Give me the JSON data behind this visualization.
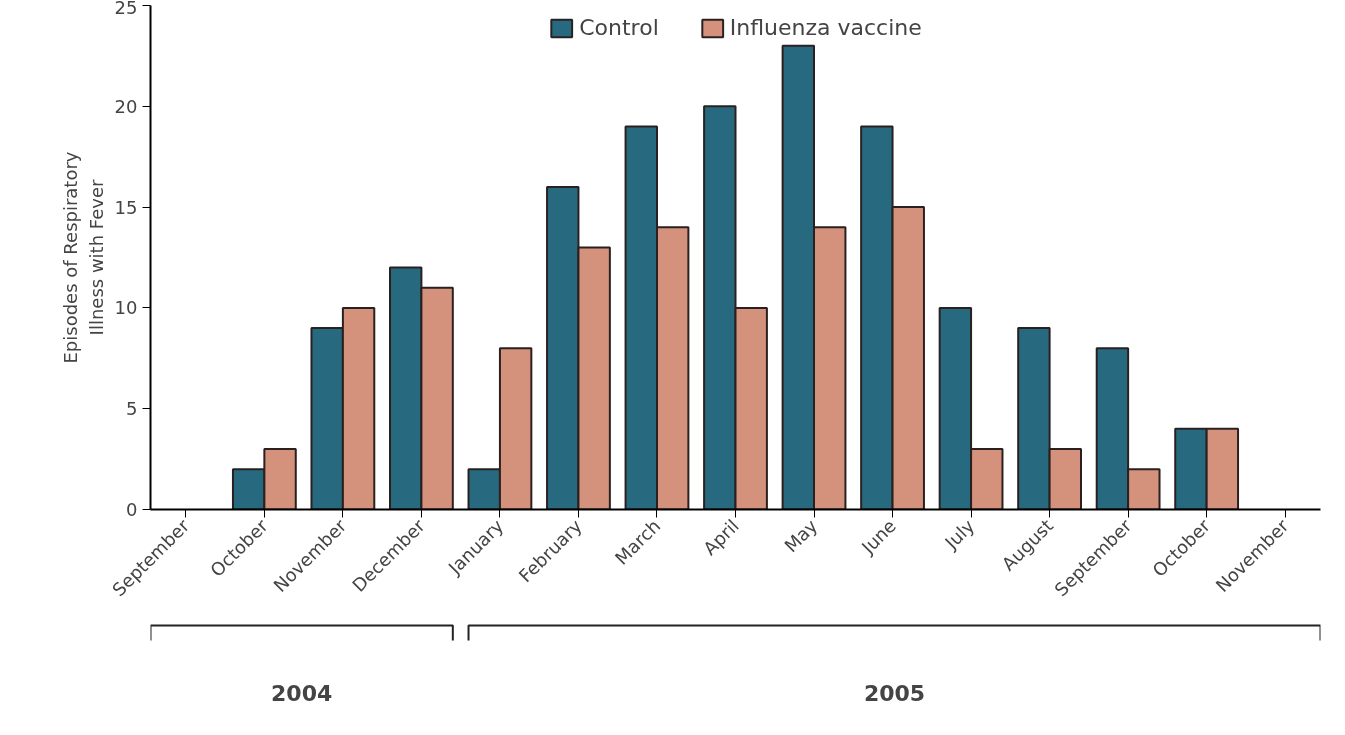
{
  "chart_data": {
    "type": "bar",
    "ylabel": "Episodes of Respiratory\nIllness with Fever",
    "categories": [
      "September",
      "October",
      "November",
      "December",
      "January",
      "February",
      "March",
      "April",
      "May",
      "June",
      "July",
      "August",
      "September",
      "October",
      "November"
    ],
    "series": [
      {
        "name": "Control",
        "color": "#276a80",
        "values": [
          null,
          2,
          9,
          12,
          2,
          16,
          19,
          20,
          23,
          19,
          10,
          9,
          8,
          4,
          null
        ]
      },
      {
        "name": "Influenza vaccine",
        "color": "#d4917c",
        "values": [
          null,
          3,
          10,
          11,
          8,
          13,
          14,
          10,
          14,
          15,
          3,
          3,
          2,
          4,
          null
        ]
      }
    ],
    "ylim": [
      0,
      25
    ],
    "yticks": [
      0,
      5,
      10,
      15,
      20,
      25
    ],
    "grid": false,
    "legend": "top",
    "annotations": [
      "2004",
      "2005"
    ]
  }
}
